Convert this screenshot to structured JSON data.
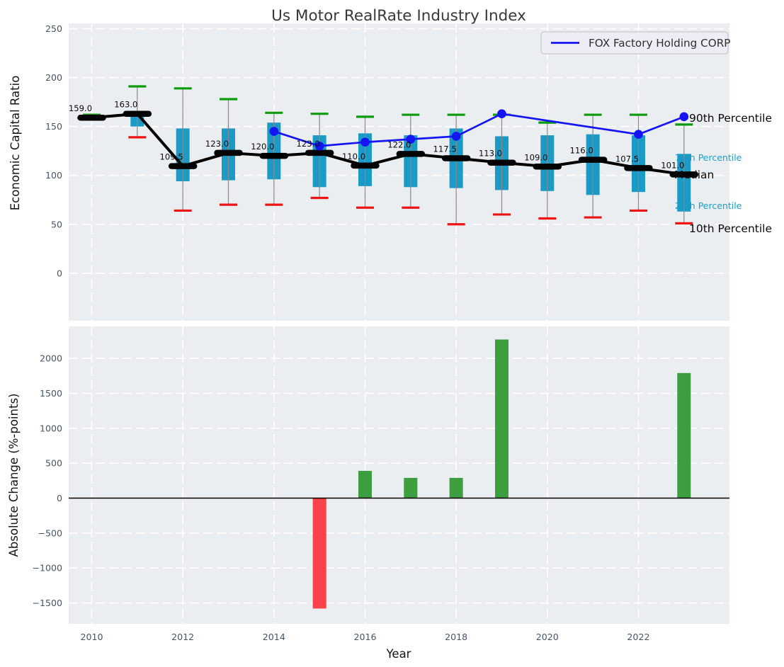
{
  "figure": {
    "title": "Us Motor RealRate Industry Index"
  },
  "colors": {
    "plot_bg": "#ebeef1",
    "grid": "#ffffff",
    "box_fill": "#1b9ac6",
    "p90_dash": "#0b9b0b",
    "p10_dash": "#ee1414",
    "median_black": "#000000",
    "fox_blue": "#1414f5",
    "bar_positive": "#3d9e40",
    "bar_negative": "#f9424a",
    "whisker": "#888888",
    "tick_label": "#45536a",
    "cyan_label": "#18a1c9",
    "legend_bg": "#eeedf5",
    "legend_border": "#c8c8ce",
    "zero_line": "#000000"
  },
  "chart_data": [
    {
      "type": "boxplot",
      "title": "Us Motor RealRate Industry Index",
      "ylabel": "Economic Capital Ratio",
      "ylim": [
        -50,
        255
      ],
      "yticks": [
        250,
        200,
        150,
        100,
        50,
        0
      ],
      "xticks": [
        2010,
        2012,
        2014,
        2016,
        2018,
        2020,
        2022
      ],
      "grid": true,
      "legend_position": "upper right",
      "years": [
        2010,
        2011,
        2012,
        2013,
        2014,
        2015,
        2016,
        2017,
        2018,
        2019,
        2020,
        2021,
        2022,
        2023
      ],
      "percentile_90": [
        162,
        191,
        189,
        178,
        164,
        163,
        160,
        162,
        162,
        162,
        154,
        162,
        162,
        152
      ],
      "percentile_75": [
        null,
        162,
        148,
        148,
        154,
        141,
        143,
        141,
        148,
        140,
        141,
        142,
        141,
        122
      ],
      "median": [
        159,
        163,
        109.5,
        123,
        120,
        123,
        110,
        122,
        117.5,
        113,
        109,
        116,
        107.5,
        101
      ],
      "median_labels": [
        "159.0",
        "163.0",
        "109.5",
        "123.0",
        "120.0",
        "123.0",
        "110.0",
        "122.0",
        "117.5",
        "113.0",
        "109.0",
        "116.0",
        "107.5",
        "101.0"
      ],
      "percentile_25": [
        null,
        150,
        94,
        95,
        96,
        88,
        89,
        88,
        87,
        85,
        84,
        80,
        83,
        63
      ],
      "percentile_10": [
        null,
        139,
        64,
        70,
        70,
        77,
        67,
        67,
        50,
        60,
        56,
        57,
        64,
        51
      ],
      "fox_line": {
        "name": "FOX Factory Holding CORP",
        "years": [
          2014,
          2015,
          2016,
          2017,
          2018,
          2019,
          2022,
          2023
        ],
        "values": [
          145,
          130,
          134,
          137,
          140,
          163,
          142,
          160
        ]
      },
      "annotations": [
        {
          "text": "90th Percentile",
          "style": "black"
        },
        {
          "text": "75th Percentile",
          "style": "cyan"
        },
        {
          "text": "Median",
          "style": "black"
        },
        {
          "text": "25th Percentile",
          "style": "cyan"
        },
        {
          "text": "10th Percentile",
          "style": "black"
        }
      ]
    },
    {
      "type": "bar",
      "ylabel": "Absolute Change (%-points)",
      "xlabel": "Year",
      "ylim": [
        -1800,
        2450
      ],
      "yticks": [
        2000,
        1500,
        1000,
        500,
        0,
        -500,
        -1000,
        -1500
      ],
      "ytick_labels": [
        "2000",
        "1500",
        "1000",
        "500",
        "0",
        "−500",
        "−1000",
        "−1500"
      ],
      "xticks": [
        2010,
        2012,
        2014,
        2016,
        2018,
        2020,
        2022
      ],
      "xtick_labels": [
        "2010",
        "2012",
        "2014",
        "2016",
        "2018",
        "2020",
        "2022"
      ],
      "years": [
        2010,
        2011,
        2012,
        2013,
        2014,
        2015,
        2016,
        2017,
        2018,
        2019,
        2020,
        2021,
        2022,
        2023
      ],
      "values": [
        null,
        null,
        null,
        null,
        null,
        -1580,
        390,
        290,
        290,
        2270,
        null,
        null,
        null,
        1790
      ]
    }
  ]
}
